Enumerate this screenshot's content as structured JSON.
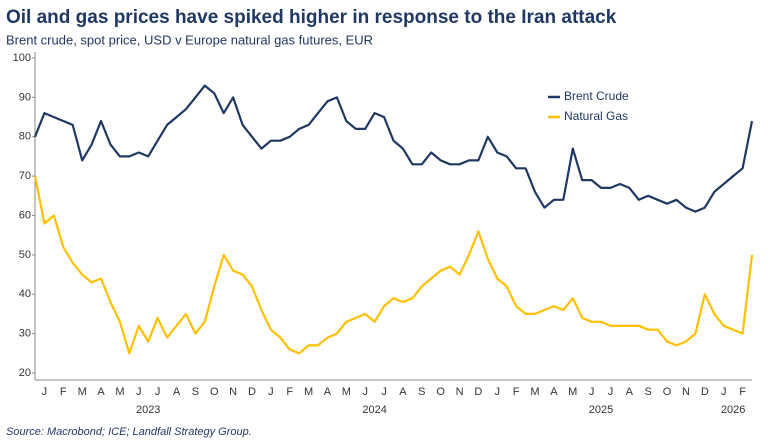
{
  "chart_data": {
    "type": "line",
    "title": "Oil and gas prices have spiked higher in response to the Iran attack",
    "subtitle": "Brent crude, spot price, USD v Europe natural gas futures, EUR",
    "source": "Source: Macrobond; ICE; Landfall Strategy Group.",
    "x": [
      0,
      0.5,
      1,
      1.5,
      2,
      2.5,
      3,
      3.5,
      4,
      4.5,
      5,
      5.5,
      6,
      6.5,
      7,
      7.5,
      8,
      8.5,
      9,
      9.5,
      10,
      10.5,
      11,
      11.5,
      12,
      12.5,
      13,
      13.5,
      14,
      14.5,
      15,
      15.5,
      16,
      16.5,
      17,
      17.5,
      18,
      18.5,
      19,
      19.5,
      20,
      20.5,
      21,
      21.5,
      22,
      22.5,
      23,
      23.5,
      24,
      24.5,
      25,
      25.5,
      26,
      26.5,
      27,
      27.5,
      28,
      28.5,
      29,
      29.5,
      30,
      30.5,
      31,
      31.5,
      32,
      32.5,
      33,
      33.5,
      34,
      34.5,
      35,
      35.5,
      36,
      36.5,
      37,
      37.5,
      38
    ],
    "series": [
      {
        "name": "Brent Crude",
        "color": "#1f3864",
        "values": [
          80,
          86,
          85,
          84,
          83,
          74,
          78,
          84,
          78,
          75,
          75,
          76,
          75,
          79,
          83,
          85,
          87,
          90,
          93,
          91,
          86,
          90,
          83,
          80,
          77,
          79,
          79,
          80,
          82,
          83,
          86,
          89,
          90,
          84,
          82,
          82,
          86,
          85,
          79,
          77,
          73,
          73,
          76,
          74,
          73,
          73,
          74,
          74,
          80,
          76,
          75,
          72,
          72,
          66,
          62,
          64,
          64,
          77,
          69,
          69,
          67,
          67,
          68,
          67,
          64,
          65,
          64,
          63,
          64,
          62,
          61,
          62,
          66,
          68,
          70,
          72,
          84
        ]
      },
      {
        "name": "Natural Gas",
        "color": "#ffc000",
        "values": [
          70,
          58,
          60,
          52,
          48,
          45,
          43,
          44,
          38,
          33,
          25,
          32,
          28,
          34,
          29,
          32,
          35,
          30,
          33,
          42,
          50,
          46,
          45,
          42,
          36,
          31,
          29,
          26,
          25,
          27,
          27,
          29,
          30,
          33,
          34,
          35,
          33,
          37,
          39,
          38,
          39,
          42,
          44,
          46,
          47,
          45,
          50,
          56,
          49,
          44,
          42,
          37,
          35,
          35,
          36,
          37,
          36,
          39,
          34,
          33,
          33,
          32,
          32,
          32,
          32,
          31,
          31,
          28,
          27,
          28,
          30,
          40,
          35,
          32,
          31,
          30,
          50
        ]
      }
    ],
    "xlim": [
      0,
      38
    ],
    "xticks": [
      {
        "value": 0.5,
        "label": "J"
      },
      {
        "value": 1.5,
        "label": "F"
      },
      {
        "value": 2.5,
        "label": "M"
      },
      {
        "value": 3.5,
        "label": "A"
      },
      {
        "value": 4.5,
        "label": "M"
      },
      {
        "value": 5.5,
        "label": "J"
      },
      {
        "value": 6.5,
        "label": "J"
      },
      {
        "value": 7.5,
        "label": "A"
      },
      {
        "value": 8.5,
        "label": "S"
      },
      {
        "value": 9.5,
        "label": "O"
      },
      {
        "value": 10.5,
        "label": "N"
      },
      {
        "value": 11.5,
        "label": "D"
      },
      {
        "value": 12.5,
        "label": "J"
      },
      {
        "value": 13.5,
        "label": "F"
      },
      {
        "value": 14.5,
        "label": "M"
      },
      {
        "value": 15.5,
        "label": "A"
      },
      {
        "value": 16.5,
        "label": "M"
      },
      {
        "value": 17.5,
        "label": "J"
      },
      {
        "value": 18.5,
        "label": "J"
      },
      {
        "value": 19.5,
        "label": "A"
      },
      {
        "value": 20.5,
        "label": "S"
      },
      {
        "value": 21.5,
        "label": "O"
      },
      {
        "value": 22.5,
        "label": "N"
      },
      {
        "value": 23.5,
        "label": "D"
      },
      {
        "value": 24.5,
        "label": "J"
      },
      {
        "value": 25.5,
        "label": "F"
      },
      {
        "value": 26.5,
        "label": "M"
      },
      {
        "value": 27.5,
        "label": "A"
      },
      {
        "value": 28.5,
        "label": "M"
      },
      {
        "value": 29.5,
        "label": "J"
      },
      {
        "value": 30.5,
        "label": "J"
      },
      {
        "value": 31.5,
        "label": "A"
      },
      {
        "value": 32.5,
        "label": "S"
      },
      {
        "value": 33.5,
        "label": "O"
      },
      {
        "value": 34.5,
        "label": "N"
      },
      {
        "value": 35.5,
        "label": "D"
      },
      {
        "value": 36.5,
        "label": "J"
      },
      {
        "value": 37.5,
        "label": "F"
      }
    ],
    "xgroups": [
      {
        "value": 6,
        "label": "2023"
      },
      {
        "value": 18,
        "label": "2024"
      },
      {
        "value": 30,
        "label": "2025"
      },
      {
        "value": 37,
        "label": "2026"
      }
    ],
    "ylim": [
      20,
      100
    ],
    "yticks": [
      20,
      30,
      40,
      50,
      60,
      70,
      80,
      90,
      100
    ],
    "legend": "upper-right"
  }
}
